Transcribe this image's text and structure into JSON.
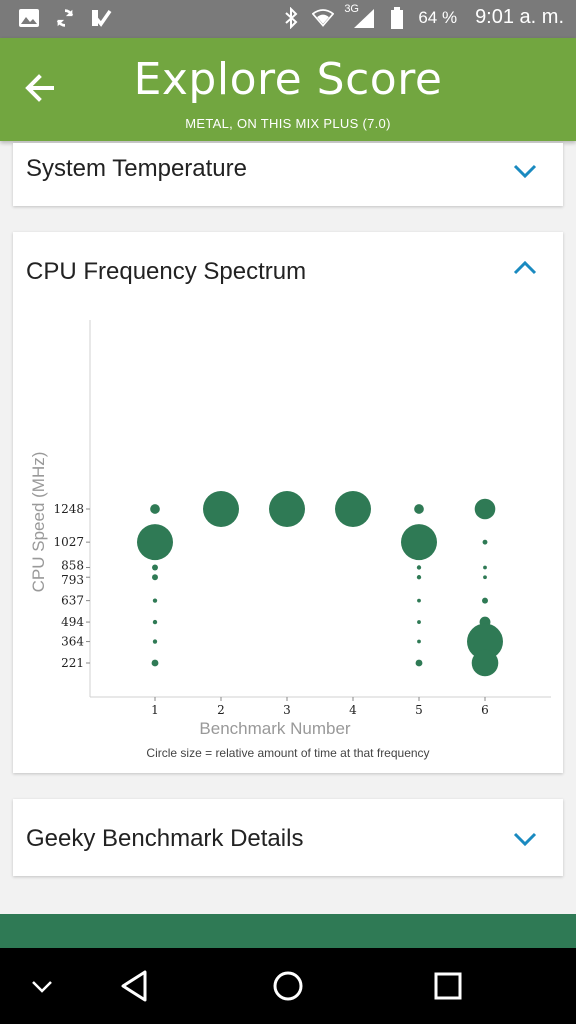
{
  "status_bar": {
    "network_label": "3G",
    "battery": "64 %",
    "time": "9:01 a. m."
  },
  "header": {
    "title": "Explore Score",
    "subtitle": "METAL, ON THIS MIX PLUS (7.0)"
  },
  "sections": {
    "temperature": {
      "title": "System Temperature",
      "state": "collapsed"
    },
    "cpu": {
      "title": "CPU Frequency Spectrum",
      "state": "expanded"
    },
    "geeky": {
      "title": "Geeky Benchmark Details",
      "state": "collapsed"
    }
  },
  "chart_caption": "Circle size = relative amount of time at that frequency",
  "colors": {
    "header": "#72a640",
    "accent": "#1a8ac0",
    "dot": "#2f7a55",
    "bottom_bar": "#2f7a55"
  },
  "chart_data": {
    "type": "scatter",
    "xlabel": "Benchmark Number",
    "ylabel": "CPU Speed (MHz)",
    "x_ticks": [
      1,
      2,
      3,
      4,
      5,
      6
    ],
    "y_ticks": [
      221,
      364,
      494,
      637,
      793,
      858,
      1027,
      1248
    ],
    "points": [
      {
        "x": 1,
        "y": 1248,
        "size": 0.04
      },
      {
        "x": 1,
        "y": 1027,
        "size": 0.55
      },
      {
        "x": 1,
        "y": 858,
        "size": 0.015
      },
      {
        "x": 1,
        "y": 793,
        "size": 0.015
      },
      {
        "x": 1,
        "y": 637,
        "size": 0.008
      },
      {
        "x": 1,
        "y": 494,
        "size": 0.008
      },
      {
        "x": 1,
        "y": 364,
        "size": 0.008
      },
      {
        "x": 1,
        "y": 221,
        "size": 0.02
      },
      {
        "x": 2,
        "y": 1248,
        "size": 0.55
      },
      {
        "x": 3,
        "y": 1248,
        "size": 0.55
      },
      {
        "x": 4,
        "y": 1248,
        "size": 0.55
      },
      {
        "x": 5,
        "y": 1248,
        "size": 0.04
      },
      {
        "x": 5,
        "y": 1027,
        "size": 0.55
      },
      {
        "x": 5,
        "y": 858,
        "size": 0.008
      },
      {
        "x": 5,
        "y": 793,
        "size": 0.008
      },
      {
        "x": 5,
        "y": 637,
        "size": 0.006
      },
      {
        "x": 5,
        "y": 494,
        "size": 0.006
      },
      {
        "x": 5,
        "y": 364,
        "size": 0.006
      },
      {
        "x": 5,
        "y": 221,
        "size": 0.02
      },
      {
        "x": 6,
        "y": 1248,
        "size": 0.18
      },
      {
        "x": 6,
        "y": 1027,
        "size": 0.01
      },
      {
        "x": 6,
        "y": 858,
        "size": 0.006
      },
      {
        "x": 6,
        "y": 793,
        "size": 0.006
      },
      {
        "x": 6,
        "y": 637,
        "size": 0.015
      },
      {
        "x": 6,
        "y": 494,
        "size": 0.05
      },
      {
        "x": 6,
        "y": 364,
        "size": 0.55
      },
      {
        "x": 6,
        "y": 221,
        "size": 0.3
      }
    ]
  },
  "nav": {
    "icons": [
      "chevron-down-icon",
      "back-triangle-icon",
      "home-circle-icon",
      "recents-square-icon"
    ]
  }
}
